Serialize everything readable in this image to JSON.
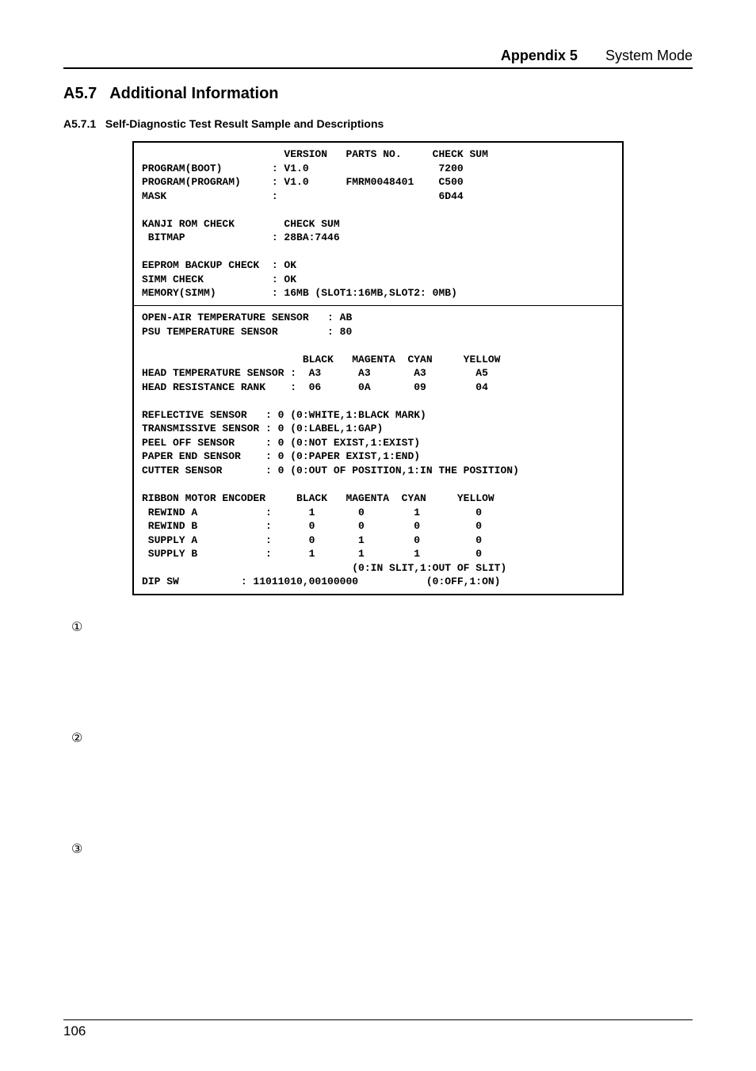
{
  "header": {
    "appendix": "Appendix 5",
    "mode": "System Mode"
  },
  "section": {
    "number": "A5.7",
    "title": "Additional Information"
  },
  "subsection": {
    "number": "A5.7.1",
    "title": "Self-Diagnostic Test Result Sample and Descriptions"
  },
  "diag": {
    "block1": "                       VERSION   PARTS NO.     CHECK SUM\nPROGRAM(BOOT)        : V1.0                     7200\nPROGRAM(PROGRAM)     : V1.0      FMRM0048401    C500\nMASK                 :                          6D44\n\nKANJI ROM CHECK        CHECK SUM\n BITMAP              : 28BA:7446\n\nEEPROM BACKUP CHECK  : OK\nSIMM CHECK           : OK\nMEMORY(SIMM)         : 16MB (SLOT1:16MB,SLOT2: 0MB)",
    "block2": "OPEN-AIR TEMPERATURE SENSOR   : AB\nPSU TEMPERATURE SENSOR        : 80\n\n                          BLACK   MAGENTA  CYAN     YELLOW\nHEAD TEMPERATURE SENSOR :  A3      A3       A3        A5\nHEAD RESISTANCE RANK    :  06      0A       09        04\n\nREFLECTIVE SENSOR   : 0 (0:WHITE,1:BLACK MARK)\nTRANSMISSIVE SENSOR : 0 (0:LABEL,1:GAP)\nPEEL OFF SENSOR     : 0 (0:NOT EXIST,1:EXIST)\nPAPER END SENSOR    : 0 (0:PAPER EXIST,1:END)\nCUTTER SENSOR       : 0 (0:OUT OF POSITION,1:IN THE POSITION)\n\nRIBBON MOTOR ENCODER     BLACK   MAGENTA  CYAN     YELLOW\n REWIND A           :      1       0        1         0\n REWIND B           :      0       0        0         0\n SUPPLY A           :      0       1        0         0\n SUPPLY B           :      1       1        1         0\n                                  (0:IN SLIT,1:OUT OF SLIT)\nDIP SW          : 11011010,00100000           (0:OFF,1:ON)"
  },
  "markers": {
    "m1": "①",
    "m2": "②",
    "m3": "③"
  },
  "footer": {
    "page": "106"
  }
}
